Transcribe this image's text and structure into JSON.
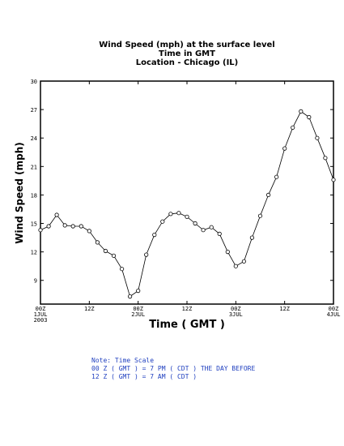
{
  "chart_data": {
    "type": "line",
    "title_lines": [
      "Wind Speed (mph) at the surface level",
      "Time in GMT",
      "Location - Chicago (IL)"
    ],
    "xlabel": "Time ( GMT )",
    "ylabel": "Wind Speed (mph)",
    "ylim": [
      6.5,
      30
    ],
    "yticks": [
      9,
      12,
      15,
      18,
      21,
      24,
      27,
      30
    ],
    "xlim": [
      0,
      36
    ],
    "x_ticks": [
      {
        "x": 0,
        "label": "00Z",
        "sub1": "1JUL",
        "sub2": "2003"
      },
      {
        "x": 6,
        "label": "12Z",
        "sub1": "",
        "sub2": ""
      },
      {
        "x": 12,
        "label": "00Z",
        "sub1": "2JUL",
        "sub2": ""
      },
      {
        "x": 18,
        "label": "12Z",
        "sub1": "",
        "sub2": ""
      },
      {
        "x": 24,
        "label": "00Z",
        "sub1": "3JUL",
        "sub2": ""
      },
      {
        "x": 30,
        "label": "12Z",
        "sub1": "",
        "sub2": ""
      },
      {
        "x": 36,
        "label": "00Z",
        "sub1": "4JUL",
        "sub2": ""
      }
    ],
    "series": [
      {
        "x": [
          0,
          1,
          2,
          3,
          4,
          5,
          6,
          7,
          8,
          9,
          10,
          11,
          12,
          13,
          14,
          15,
          16,
          17,
          18,
          19,
          20,
          21,
          22,
          23,
          24,
          25,
          26,
          27,
          28,
          29,
          30,
          31,
          32,
          33,
          34,
          35,
          36
        ],
        "values": [
          14.3,
          14.7,
          15.9,
          14.8,
          14.7,
          14.7,
          14.2,
          13.0,
          12.1,
          11.6,
          10.2,
          7.3,
          7.9,
          11.7,
          13.8,
          15.2,
          16.0,
          16.1,
          15.7,
          15.0,
          14.3,
          14.6,
          13.9,
          12.0,
          10.5,
          11.0,
          13.5,
          15.8,
          18.0,
          19.9,
          22.9,
          25.1,
          26.8,
          26.2,
          24.0,
          21.9,
          19.6
        ]
      }
    ],
    "grid": false
  },
  "note": {
    "lines": [
      "Note: Time Scale",
      "00 Z ( GMT ) = 7 PM ( CDT ) THE DAY BEFORE",
      "12 Z ( GMT ) = 7 AM ( CDT )"
    ]
  }
}
